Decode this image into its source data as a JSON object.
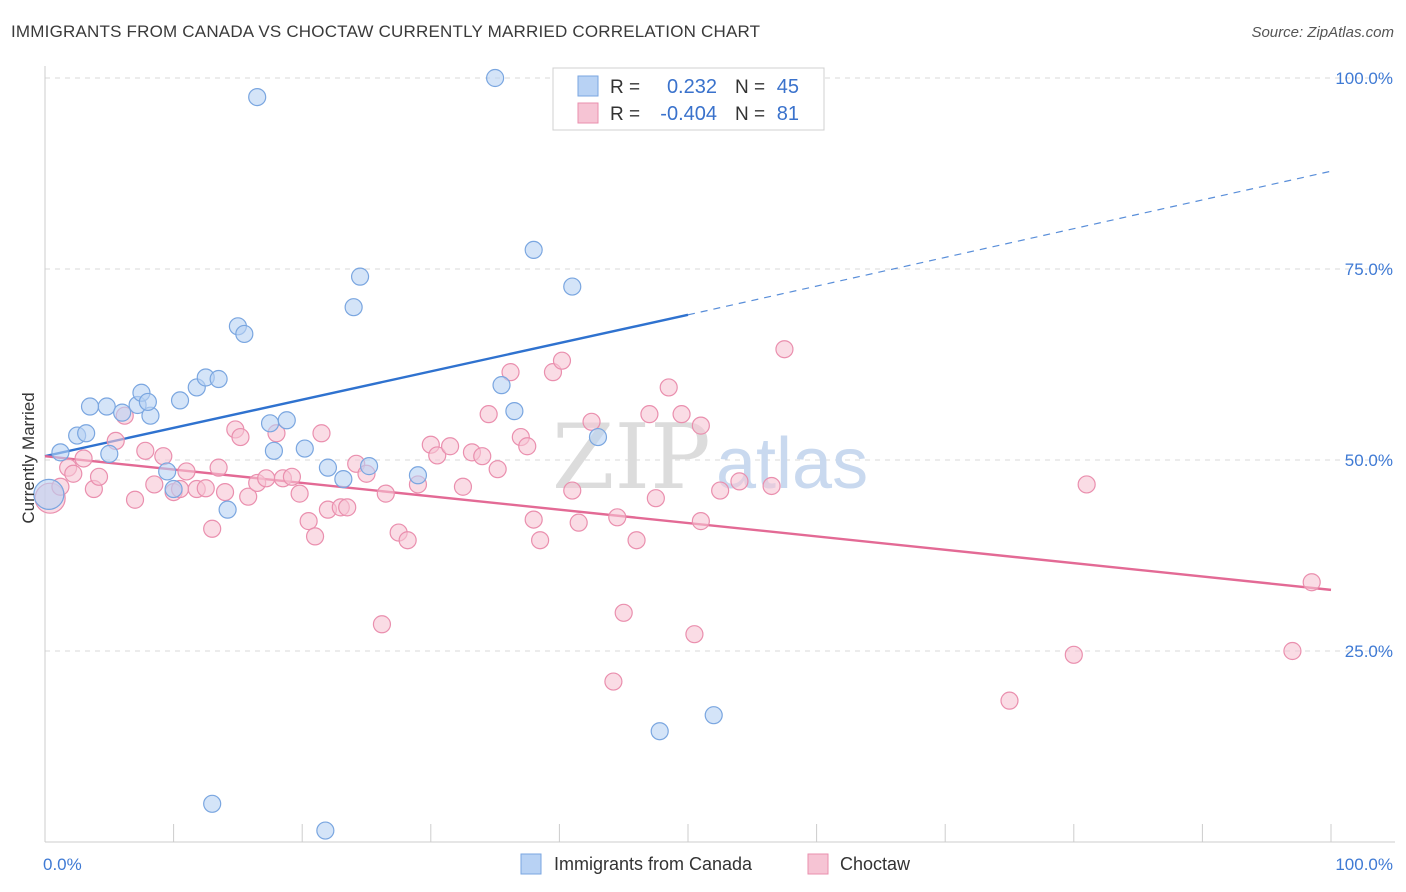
{
  "title": "IMMIGRANTS FROM CANADA VS CHOCTAW CURRENTLY MARRIED CORRELATION CHART",
  "source": "Source: ZipAtlas.com",
  "watermark": {
    "zip": "ZIP",
    "atlas": "atlas"
  },
  "colors": {
    "blue_fill": "#b8d2f4",
    "blue_stroke": "#7aa6e0",
    "blue_line": "#2f72cf",
    "pink_fill": "#f6c4d4",
    "pink_stroke": "#ea8fae",
    "pink_line": "#e36a95",
    "tick_text": "#3f7ad4",
    "grid": "#d9d9d9"
  },
  "legend": {
    "rows": [
      {
        "r_label": "R =",
        "r_value": "0.232",
        "n_label": "N =",
        "n_value": "45"
      },
      {
        "r_label": "R =",
        "r_value": "-0.404",
        "n_label": "N =",
        "n_value": "81"
      }
    ]
  },
  "chart_data": {
    "type": "scatter",
    "xlabel": "",
    "ylabel": "Currently Married",
    "xlim": [
      0,
      100
    ],
    "ylim": [
      0,
      100
    ],
    "x_tick_labels": [
      "0.0%",
      "100.0%"
    ],
    "y_tick_labels": [
      "25.0%",
      "50.0%",
      "75.0%",
      "100.0%"
    ],
    "y_ticks": [
      25,
      50,
      75,
      100
    ],
    "grid": true,
    "legend_position": "top-center",
    "series": [
      {
        "name": "Immigrants from Canada",
        "color": "#b8d2f4",
        "r": 0.232,
        "n": 45,
        "trend": {
          "x0": 0,
          "y0": 50.5,
          "x1": 50,
          "y1": 69.0,
          "dashed_to_x": 100,
          "dashed_to_y": 87.8
        },
        "points": [
          [
            0.3,
            45.5,
            "big"
          ],
          [
            1.2,
            51.0
          ],
          [
            2.5,
            53.2
          ],
          [
            3.2,
            53.5
          ],
          [
            4.8,
            57.0
          ],
          [
            3.5,
            57.0
          ],
          [
            6.0,
            56.2
          ],
          [
            5.0,
            50.8
          ],
          [
            7.2,
            57.2
          ],
          [
            8.2,
            55.8
          ],
          [
            7.5,
            58.8
          ],
          [
            8.0,
            57.6
          ],
          [
            10.5,
            57.8
          ],
          [
            11.8,
            59.5
          ],
          [
            12.5,
            60.8
          ],
          [
            13.5,
            60.6
          ],
          [
            14.2,
            43.5
          ],
          [
            9.5,
            48.5
          ],
          [
            10.0,
            46.2
          ],
          [
            15.0,
            67.5
          ],
          [
            15.5,
            66.5
          ],
          [
            17.5,
            54.8
          ],
          [
            18.8,
            55.2
          ],
          [
            17.8,
            51.2
          ],
          [
            20.2,
            51.5
          ],
          [
            22.0,
            49.0
          ],
          [
            23.2,
            47.5
          ],
          [
            24.0,
            70.0
          ],
          [
            24.5,
            74.0
          ],
          [
            25.2,
            49.2
          ],
          [
            29.0,
            48.0
          ],
          [
            35.5,
            59.8
          ],
          [
            36.5,
            56.4
          ],
          [
            38.0,
            77.5
          ],
          [
            41.0,
            72.7
          ],
          [
            43.0,
            53.0
          ],
          [
            13.0,
            5.0
          ],
          [
            21.8,
            1.5
          ],
          [
            47.8,
            14.5
          ],
          [
            52.0,
            16.6
          ],
          [
            16.5,
            97.5
          ],
          [
            35.0,
            100.0
          ],
          [
            44.0,
            100.0
          ],
          [
            50.5,
            100.0
          ],
          [
            55.0,
            100.0
          ]
        ]
      },
      {
        "name": "Choctaw",
        "color": "#f6c4d4",
        "r": -0.404,
        "n": 81,
        "trend": {
          "x0": 0,
          "y0": 50.5,
          "x1": 100,
          "y1": 33.0
        },
        "points": [
          [
            0.4,
            45.0,
            "big"
          ],
          [
            1.2,
            46.5
          ],
          [
            1.8,
            49.0
          ],
          [
            2.2,
            48.2
          ],
          [
            3.0,
            50.2
          ],
          [
            3.8,
            46.2
          ],
          [
            4.2,
            47.8
          ],
          [
            5.5,
            52.5
          ],
          [
            6.2,
            55.8
          ],
          [
            7.0,
            44.8
          ],
          [
            7.8,
            51.2
          ],
          [
            8.5,
            46.8
          ],
          [
            9.2,
            50.5
          ],
          [
            10.0,
            45.8
          ],
          [
            10.5,
            46.2
          ],
          [
            11.0,
            48.5
          ],
          [
            11.8,
            46.2
          ],
          [
            12.5,
            46.3
          ],
          [
            13.0,
            41.0
          ],
          [
            13.5,
            49.0
          ],
          [
            14.0,
            45.8
          ],
          [
            14.8,
            54.0
          ],
          [
            15.2,
            53.0
          ],
          [
            15.8,
            45.2
          ],
          [
            16.5,
            47.0
          ],
          [
            17.2,
            47.6
          ],
          [
            18.0,
            53.5
          ],
          [
            18.5,
            47.6
          ],
          [
            19.2,
            47.8
          ],
          [
            19.8,
            45.6
          ],
          [
            20.5,
            42.0
          ],
          [
            21.0,
            40.0
          ],
          [
            21.5,
            53.5
          ],
          [
            22.0,
            43.5
          ],
          [
            23.0,
            43.8
          ],
          [
            23.5,
            43.8
          ],
          [
            24.2,
            49.5
          ],
          [
            25.0,
            48.2
          ],
          [
            26.5,
            45.6
          ],
          [
            27.5,
            40.5
          ],
          [
            28.2,
            39.5
          ],
          [
            29.0,
            46.8
          ],
          [
            30.0,
            52.0
          ],
          [
            30.5,
            50.6
          ],
          [
            31.5,
            51.8
          ],
          [
            32.5,
            46.5
          ],
          [
            33.2,
            51.0
          ],
          [
            34.0,
            50.5
          ],
          [
            34.5,
            56.0
          ],
          [
            35.2,
            48.8
          ],
          [
            36.2,
            61.5
          ],
          [
            37.0,
            53.0
          ],
          [
            37.5,
            51.8
          ],
          [
            38.0,
            42.2
          ],
          [
            38.5,
            39.5
          ],
          [
            39.5,
            61.5
          ],
          [
            40.2,
            63.0
          ],
          [
            41.0,
            46.0
          ],
          [
            41.5,
            41.8
          ],
          [
            42.5,
            55.0
          ],
          [
            44.5,
            42.5
          ],
          [
            45.0,
            30.0
          ],
          [
            46.0,
            39.5
          ],
          [
            47.0,
            56.0
          ],
          [
            47.5,
            45.0
          ],
          [
            48.5,
            59.5
          ],
          [
            49.5,
            56.0
          ],
          [
            50.5,
            27.2
          ],
          [
            51.0,
            54.5
          ],
          [
            52.5,
            46.0
          ],
          [
            54.0,
            47.2
          ],
          [
            56.5,
            46.6
          ],
          [
            57.5,
            64.5
          ],
          [
            44.2,
            21.0
          ],
          [
            26.2,
            28.5
          ],
          [
            51.0,
            42.0
          ],
          [
            81.0,
            46.8
          ],
          [
            75.0,
            18.5
          ],
          [
            80.0,
            24.5
          ],
          [
            97.0,
            25.0
          ],
          [
            98.5,
            34.0
          ]
        ]
      }
    ]
  },
  "bottom_legend": {
    "items": [
      {
        "label": "Immigrants from Canada"
      },
      {
        "label": "Choctaw"
      }
    ]
  }
}
